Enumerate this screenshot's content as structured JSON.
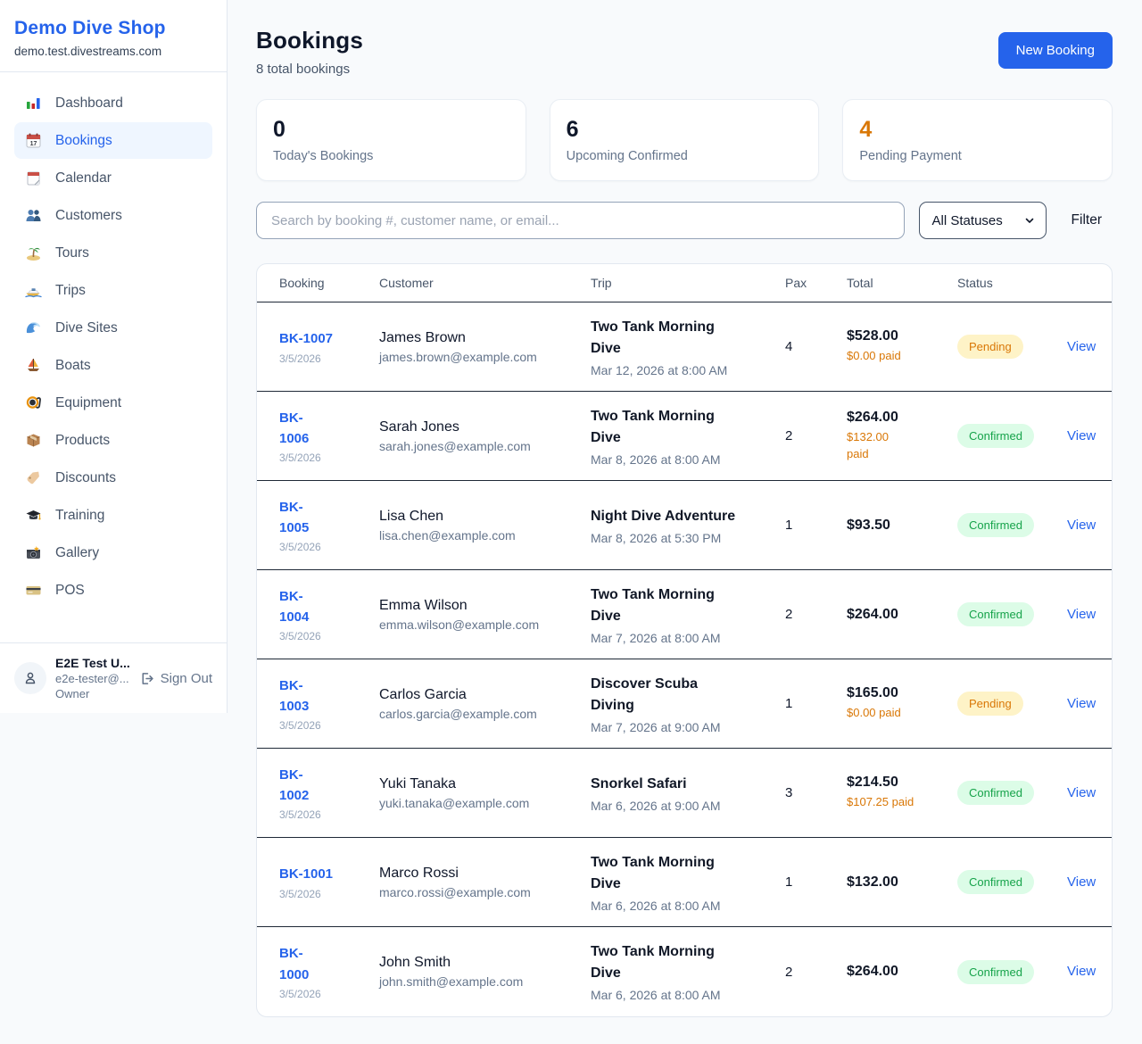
{
  "colors": {
    "accent_blue": "#2563eb",
    "pending_orange": "#d97706",
    "confirmed_green": "#16a34a",
    "pending_badge_bg": "#fef3c7",
    "confirmed_badge_bg": "#dcfce7",
    "page_bg": "#f8fafc"
  },
  "sidebar": {
    "title": "Demo Dive Shop",
    "domain": "demo.test.divestreams.com",
    "items": [
      {
        "label": "Dashboard",
        "icon": "bar-chart-icon",
        "active": false
      },
      {
        "label": "Bookings",
        "icon": "calendar-date-icon",
        "active": true
      },
      {
        "label": "Calendar",
        "icon": "tear-calendar-icon",
        "active": false
      },
      {
        "label": "Customers",
        "icon": "people-icon",
        "active": false
      },
      {
        "label": "Tours",
        "icon": "island-icon",
        "active": false
      },
      {
        "label": "Trips",
        "icon": "speedboat-icon",
        "active": false
      },
      {
        "label": "Dive Sites",
        "icon": "wave-icon",
        "active": false
      },
      {
        "label": "Boats",
        "icon": "sailboat-icon",
        "active": false
      },
      {
        "label": "Equipment",
        "icon": "dive-mask-icon",
        "active": false
      },
      {
        "label": "Products",
        "icon": "package-icon",
        "active": false
      },
      {
        "label": "Discounts",
        "icon": "tag-icon",
        "active": false
      },
      {
        "label": "Training",
        "icon": "grad-cap-icon",
        "active": false
      },
      {
        "label": "Gallery",
        "icon": "camera-icon",
        "active": false
      },
      {
        "label": "POS",
        "icon": "credit-card-icon",
        "active": false
      }
    ],
    "user": {
      "name": "E2E Test U...",
      "email": "e2e-tester@...",
      "role": "Owner",
      "sign_out_label": "Sign Out"
    }
  },
  "header": {
    "title": "Bookings",
    "subtitle": "8 total bookings",
    "new_booking_label": "New Booking"
  },
  "stats": [
    {
      "value": "0",
      "label": "Today's Bookings",
      "value_color": "#0f172a"
    },
    {
      "value": "6",
      "label": "Upcoming Confirmed",
      "value_color": "#0f172a"
    },
    {
      "value": "4",
      "label": "Pending Payment",
      "value_color": "#d97706"
    }
  ],
  "filters": {
    "search_placeholder": "Search by booking #, customer name, or email...",
    "status_selected": "All Statuses",
    "filter_label": "Filter"
  },
  "table": {
    "columns": [
      "Booking",
      "Customer",
      "Trip",
      "Pax",
      "Total",
      "Status"
    ],
    "rows": [
      {
        "id": "BK-1007",
        "date": "3/5/2026",
        "customer": "James Brown",
        "email": "james.brown@example.com",
        "trip": "Two Tank Morning\nDive",
        "trip_date": "Mar 12, 2026 at 8:00 AM",
        "pax": "4",
        "total": "$528.00",
        "paid": "$0.00 paid",
        "status": "Pending",
        "action": "View"
      },
      {
        "id": "BK-\n1006",
        "date": "3/5/2026",
        "customer": "Sarah Jones",
        "email": "sarah.jones@example.com",
        "trip": "Two Tank Morning\nDive",
        "trip_date": "Mar 8, 2026 at 8:00 AM",
        "pax": "2",
        "total": "$264.00",
        "paid": "$132.00\npaid",
        "status": "Confirmed",
        "action": "View"
      },
      {
        "id": "BK-\n1005",
        "date": "3/5/2026",
        "customer": "Lisa Chen",
        "email": "lisa.chen@example.com",
        "trip": "Night Dive Adventure",
        "trip_date": "Mar 8, 2026 at 5:30 PM",
        "pax": "1",
        "total": "$93.50",
        "paid": "",
        "status": "Confirmed",
        "action": "View"
      },
      {
        "id": "BK-\n1004",
        "date": "3/5/2026",
        "customer": "Emma Wilson",
        "email": "emma.wilson@example.com",
        "trip": "Two Tank Morning\nDive",
        "trip_date": "Mar 7, 2026 at 8:00 AM",
        "pax": "2",
        "total": "$264.00",
        "paid": "",
        "status": "Confirmed",
        "action": "View"
      },
      {
        "id": "BK-\n1003",
        "date": "3/5/2026",
        "customer": "Carlos Garcia",
        "email": "carlos.garcia@example.com",
        "trip": "Discover Scuba\nDiving",
        "trip_date": "Mar 7, 2026 at 9:00 AM",
        "pax": "1",
        "total": "$165.00",
        "paid": "$0.00 paid",
        "status": "Pending",
        "action": "View"
      },
      {
        "id": "BK-\n1002",
        "date": "3/5/2026",
        "customer": "Yuki Tanaka",
        "email": "yuki.tanaka@example.com",
        "trip": "Snorkel Safari",
        "trip_date": "Mar 6, 2026 at 9:00 AM",
        "pax": "3",
        "total": "$214.50",
        "paid": "$107.25 paid",
        "status": "Confirmed",
        "action": "View"
      },
      {
        "id": "BK-1001",
        "date": "3/5/2026",
        "customer": "Marco Rossi",
        "email": "marco.rossi@example.com",
        "trip": "Two Tank Morning\nDive",
        "trip_date": "Mar 6, 2026 at 8:00 AM",
        "pax": "1",
        "total": "$132.00",
        "paid": "",
        "status": "Confirmed",
        "action": "View"
      },
      {
        "id": "BK-\n1000",
        "date": "3/5/2026",
        "customer": "John Smith",
        "email": "john.smith@example.com",
        "trip": "Two Tank Morning\nDive",
        "trip_date": "Mar 6, 2026 at 8:00 AM",
        "pax": "2",
        "total": "$264.00",
        "paid": "",
        "status": "Confirmed",
        "action": "View"
      }
    ]
  }
}
